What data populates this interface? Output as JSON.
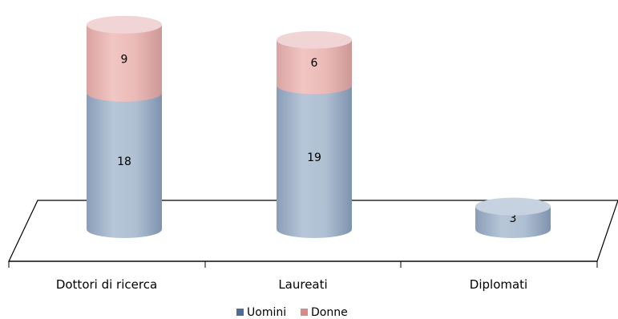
{
  "chart_data": {
    "type": "bar",
    "stacked": true,
    "style": "3d-cylinder",
    "categories": [
      "Dottori di ricerca",
      "Laureati",
      "Diplomati"
    ],
    "series": [
      {
        "name": "Uomini",
        "values": [
          18,
          19,
          3
        ],
        "color": "#A9B9CB"
      },
      {
        "name": "Donne",
        "values": [
          9,
          6,
          null
        ],
        "color": "#E6B5B2"
      }
    ],
    "data_labels": true,
    "legend": "bottom",
    "grid": false,
    "ylim": [
      0,
      27
    ]
  },
  "legend": {
    "items": [
      {
        "label": "Uomini",
        "swatch": "#4F6B96"
      },
      {
        "label": "Donne",
        "swatch": "#D88A88"
      }
    ]
  }
}
